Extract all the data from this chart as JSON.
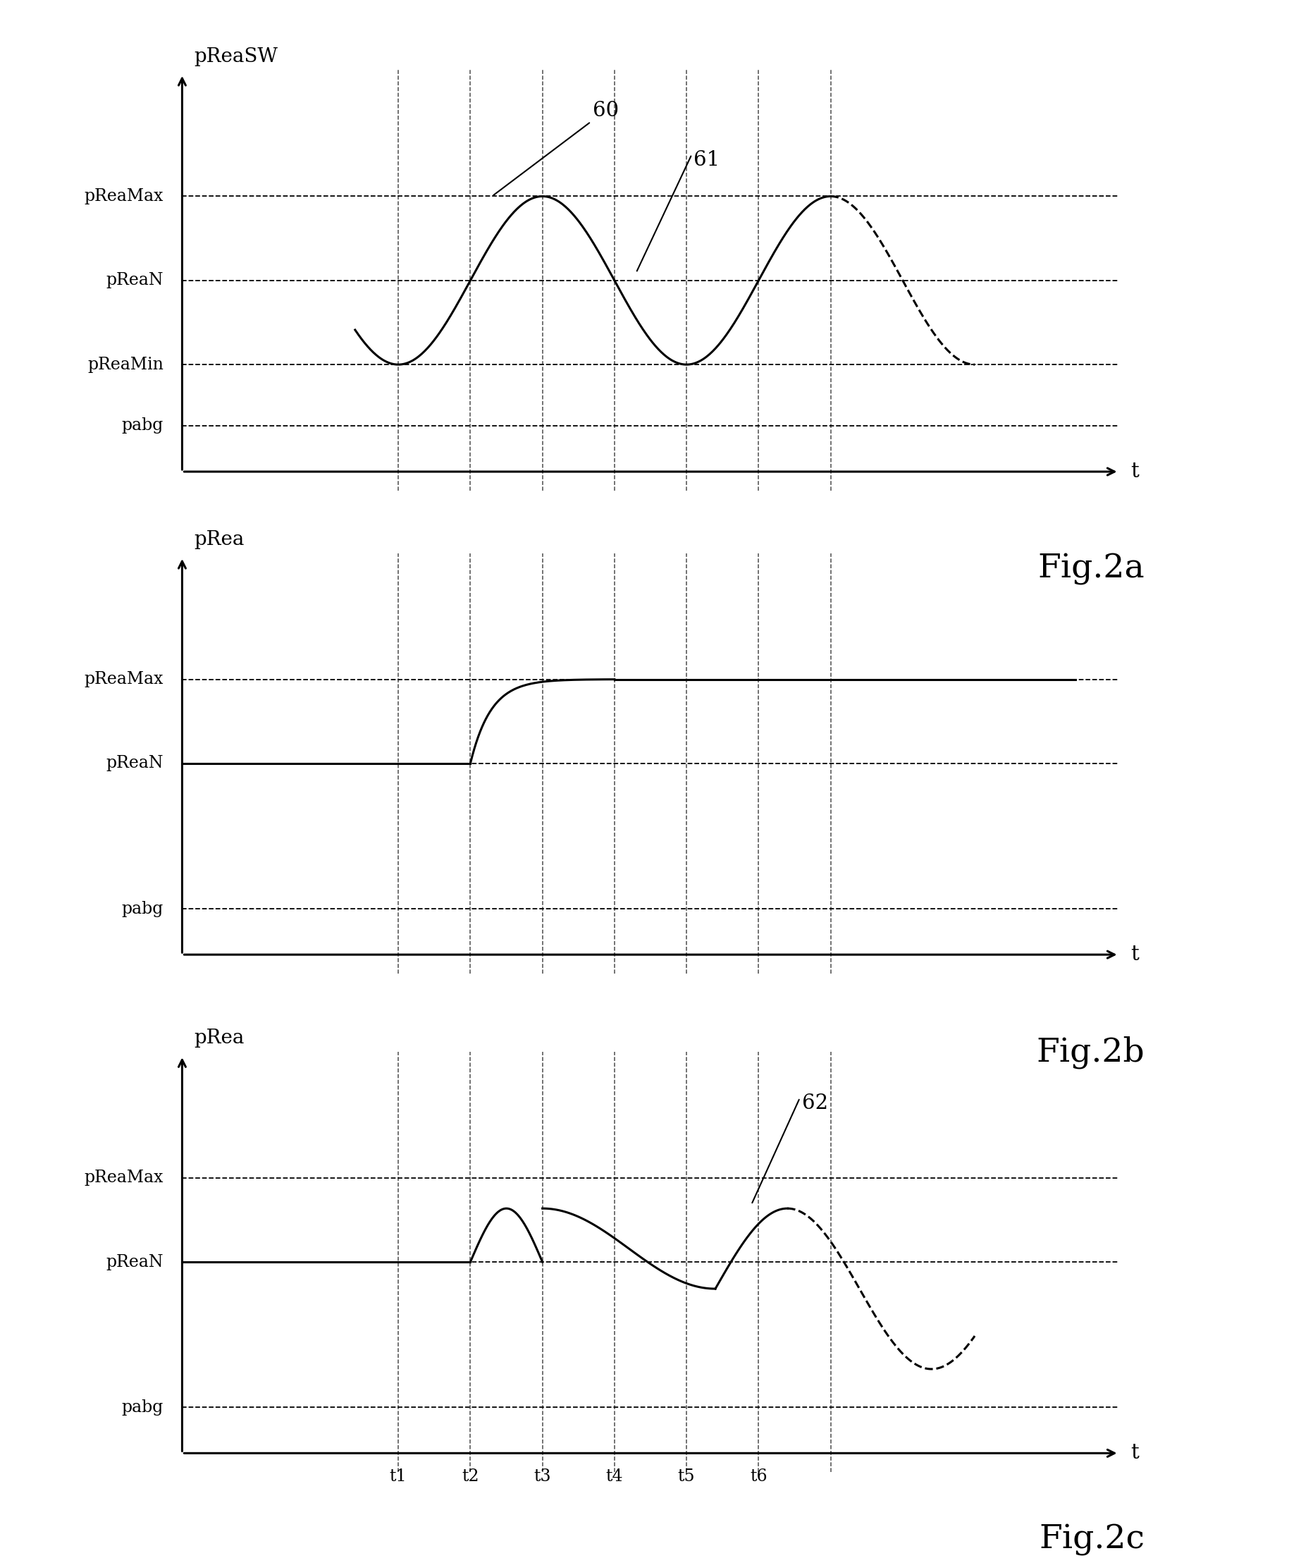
{
  "fig2a": {
    "ylabel": "pReaSW",
    "xlabel": "t",
    "y_levels": {
      "pReaMax": 0.72,
      "pReaN": 0.5,
      "pReaMin": 0.28,
      "pabg": 0.12
    },
    "label": "Fig.2a"
  },
  "fig2b": {
    "ylabel": "pRea",
    "xlabel": "t",
    "y_levels": {
      "pReaMax": 0.72,
      "pReaN": 0.5,
      "pabg": 0.12
    },
    "label": "Fig.2b"
  },
  "fig2c": {
    "ylabel": "pRea",
    "xlabel": "t",
    "y_levels": {
      "pReaMax": 0.72,
      "pReaN": 0.5,
      "pabg": 0.12
    },
    "t_labels": [
      "t1",
      "t2",
      "t3",
      "t4",
      "t5",
      "t6"
    ],
    "label": "Fig.2c"
  },
  "background_color": "#ffffff",
  "line_color": "#000000"
}
